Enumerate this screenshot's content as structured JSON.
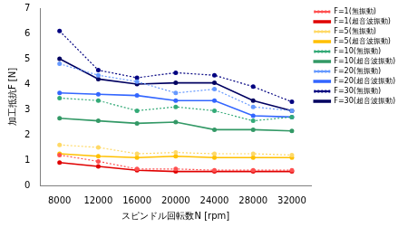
{
  "chart_data": {
    "type": "line",
    "x_label": "スピンドル回転数N [rpm]",
    "y_label": "加工抵抗F [N]",
    "categories": [
      "8000",
      "12000",
      "16000",
      "20000",
      "24000",
      "28000",
      "32000"
    ],
    "ylim": [
      0,
      7
    ],
    "yticks": [
      0,
      1,
      2,
      3,
      4,
      5,
      6,
      7
    ],
    "grid": false,
    "legend": "right",
    "series": [
      {
        "name": "F=1(無振動)",
        "color": "#ff5050",
        "line_style": "dotted",
        "marker": "circle",
        "values": [
          1.2,
          0.95,
          0.65,
          0.65,
          0.6,
          0.6,
          0.6
        ]
      },
      {
        "name": "F=1(超音波振動)",
        "color": "#e00000",
        "line_style": "solid",
        "marker": "circle",
        "values": [
          0.9,
          0.75,
          0.6,
          0.55,
          0.55,
          0.55,
          0.55
        ]
      },
      {
        "name": "F=5(無振動)",
        "color": "#ffd966",
        "line_style": "dotted",
        "marker": "circle",
        "values": [
          1.6,
          1.5,
          1.25,
          1.3,
          1.25,
          1.25,
          1.2
        ]
      },
      {
        "name": "F=5(超音波振動)",
        "color": "#ffc000",
        "line_style": "solid",
        "marker": "circle",
        "values": [
          1.25,
          1.15,
          1.1,
          1.15,
          1.1,
          1.1,
          1.1
        ]
      },
      {
        "name": "F=10(無振動)",
        "color": "#33aa77",
        "line_style": "dotted",
        "marker": "circle",
        "values": [
          3.45,
          3.35,
          2.95,
          3.1,
          2.95,
          2.55,
          2.7
        ]
      },
      {
        "name": "F=10(超音波振動)",
        "color": "#339966",
        "line_style": "solid",
        "marker": "circle",
        "values": [
          2.65,
          2.55,
          2.45,
          2.5,
          2.2,
          2.2,
          2.15
        ]
      },
      {
        "name": "F=20(無振動)",
        "color": "#6699ff",
        "line_style": "dotted",
        "marker": "circle",
        "values": [
          4.8,
          4.35,
          4.1,
          3.65,
          3.8,
          3.1,
          2.95
        ]
      },
      {
        "name": "F=20(超音波振動)",
        "color": "#3366ff",
        "line_style": "solid",
        "marker": "circle",
        "values": [
          3.65,
          3.6,
          3.55,
          3.35,
          3.35,
          2.75,
          2.7
        ]
      },
      {
        "name": "F=30(無振動)",
        "color": "#000080",
        "line_style": "dotted",
        "marker": "circle",
        "values": [
          6.1,
          4.55,
          4.25,
          4.45,
          4.35,
          3.9,
          3.3
        ]
      },
      {
        "name": "F=30(超音波振動)",
        "color": "#000060",
        "line_style": "solid",
        "marker": "circle",
        "values": [
          5.0,
          4.2,
          4.0,
          4.05,
          4.05,
          3.35,
          2.95
        ]
      }
    ]
  }
}
